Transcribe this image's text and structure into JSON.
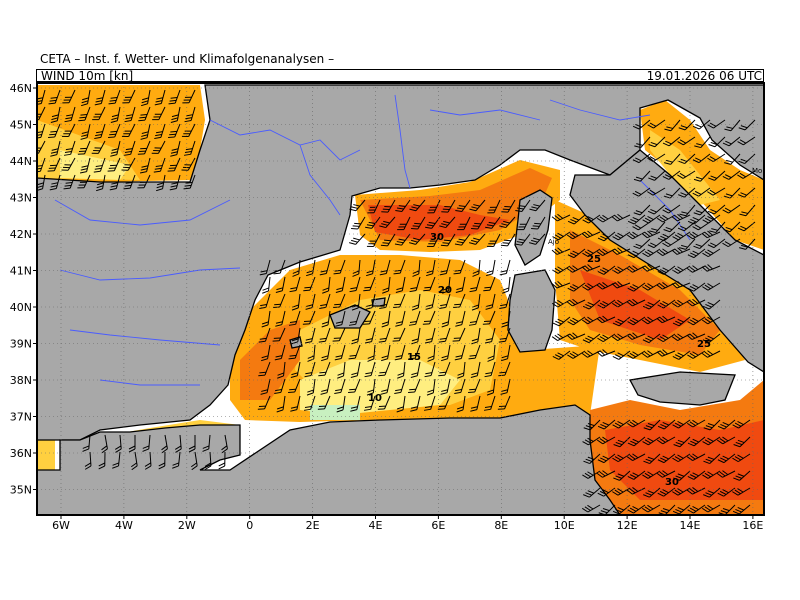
{
  "header": {
    "institute": "CETA – Inst. f. Wetter- und Klimafolgenanalysen –",
    "field": "WIND 10m [kn]",
    "valid_time": "19.01.2026 06 UTC"
  },
  "axes": {
    "lon_labels": [
      "6W",
      "4W",
      "2W",
      "0",
      "2E",
      "4E",
      "6E",
      "8E",
      "10E",
      "12E",
      "14E",
      "16E"
    ],
    "lat_labels": [
      "46N",
      "45N",
      "44N",
      "43N",
      "42N",
      "41N",
      "40N",
      "39N",
      "38N",
      "37N",
      "36N",
      "35N"
    ]
  },
  "isotach_labels": [
    "30",
    "25",
    "20",
    "15",
    "10",
    "25",
    "30"
  ],
  "place_labels": [
    "Ajo",
    "Mo"
  ],
  "colors": {
    "land": "#a8a8a8",
    "sea_calm": "#ffffff",
    "wind_10": "#ffee80",
    "wind_15": "#ffd040",
    "wind_20": "#ffab10",
    "wind_25": "#f47a10",
    "wind_30": "#f04a10",
    "coast": "#000000",
    "rivers": "#4a5cff"
  }
}
